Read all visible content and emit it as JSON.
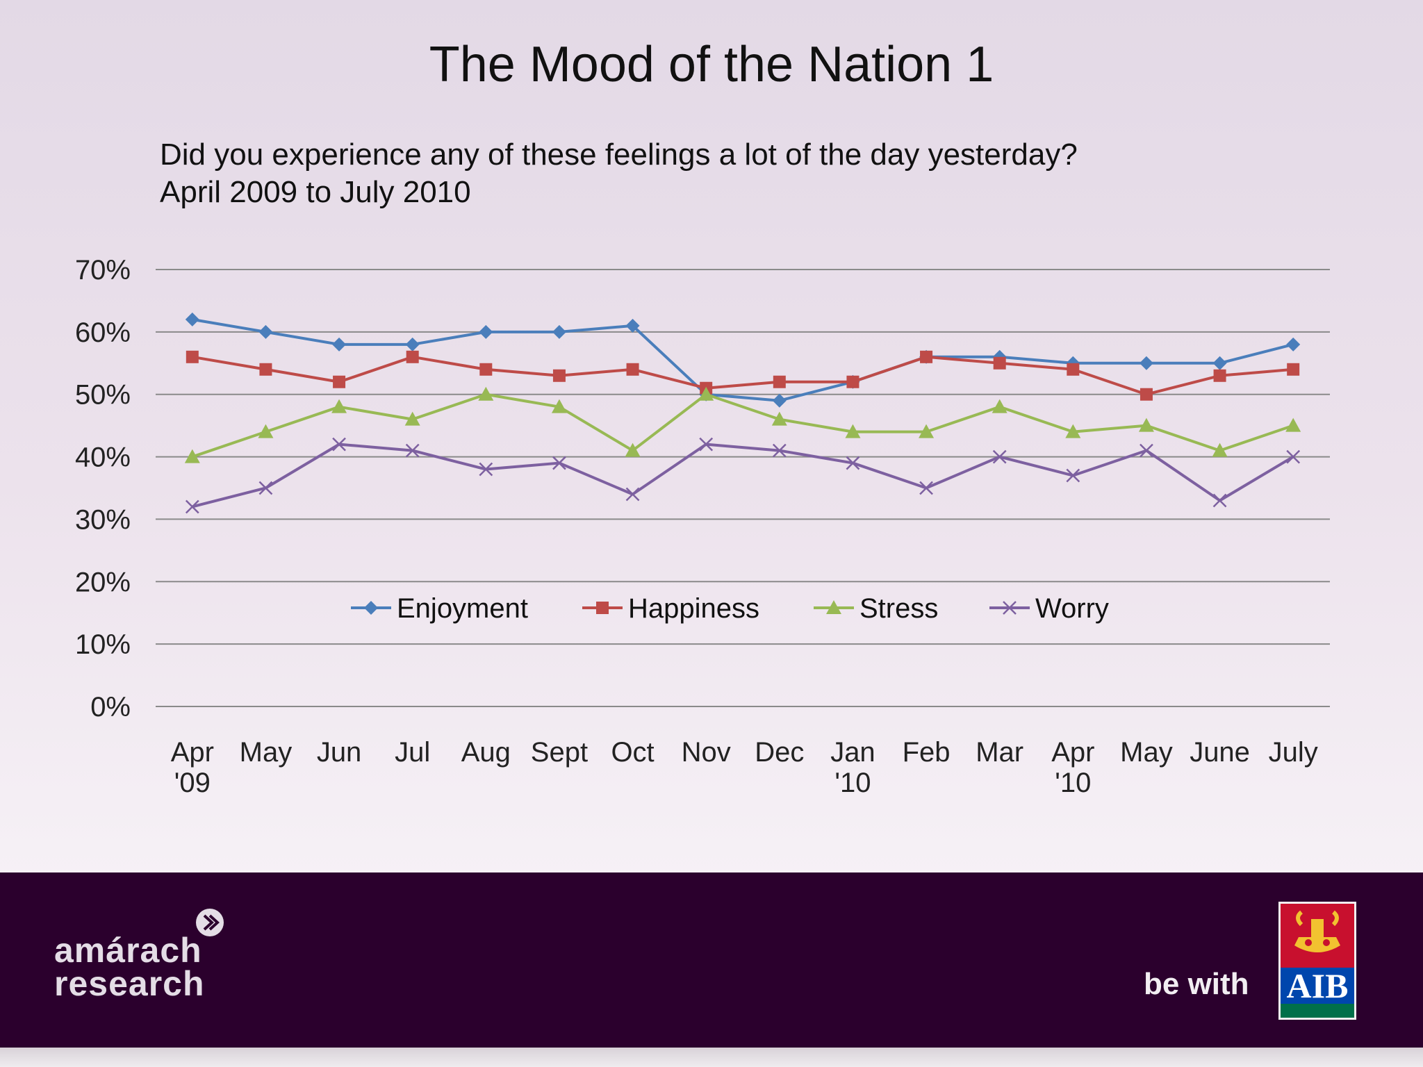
{
  "slide": {
    "title": "The Mood of the Nation 1",
    "subtitle_line1": "Did you experience any of these feelings a lot of the day yesterday?",
    "subtitle_line2": "April 2009 to July 2010"
  },
  "chart_data": {
    "type": "line",
    "title": "",
    "xlabel": "",
    "ylabel": "",
    "ylim": [
      0,
      70
    ],
    "y_unit": "%",
    "y_ticks": [
      "70%",
      "60%",
      "50%",
      "40%",
      "30%",
      "20%",
      "10%",
      "0%"
    ],
    "grid": true,
    "legend_position": "inside-bottom",
    "categories": [
      [
        "Apr",
        "'09"
      ],
      [
        "May"
      ],
      [
        "Jun"
      ],
      [
        "Jul"
      ],
      [
        "Aug"
      ],
      [
        "Sept"
      ],
      [
        "Oct"
      ],
      [
        "Nov"
      ],
      [
        "Dec"
      ],
      [
        "Jan",
        "'10"
      ],
      [
        "Feb"
      ],
      [
        "Mar"
      ],
      [
        "Apr",
        "'10"
      ],
      [
        "May"
      ],
      [
        "June"
      ],
      [
        "July"
      ]
    ],
    "series": [
      {
        "name": "Enjoyment",
        "color": "#4a7ebb",
        "marker": "diamond",
        "values": [
          62,
          60,
          58,
          58,
          60,
          60,
          61,
          50,
          49,
          52,
          56,
          56,
          55,
          55,
          55,
          58
        ]
      },
      {
        "name": "Happiness",
        "color": "#be4b48",
        "marker": "square",
        "values": [
          56,
          54,
          52,
          56,
          54,
          53,
          54,
          51,
          52,
          52,
          56,
          55,
          54,
          50,
          53,
          54
        ]
      },
      {
        "name": "Stress",
        "color": "#98b954",
        "marker": "triangle",
        "values": [
          40,
          44,
          48,
          46,
          50,
          48,
          41,
          50,
          46,
          44,
          44,
          48,
          44,
          45,
          41,
          45
        ]
      },
      {
        "name": "Worry",
        "color": "#7d60a0",
        "marker": "x",
        "values": [
          32,
          35,
          42,
          41,
          38,
          39,
          34,
          42,
          41,
          39,
          35,
          40,
          37,
          41,
          33,
          40
        ]
      }
    ]
  },
  "footer": {
    "brand_line1": "amárach",
    "brand_line2": "research",
    "tagline": "be with",
    "logo_text": "AIB",
    "bg_color": "#2b002d"
  }
}
